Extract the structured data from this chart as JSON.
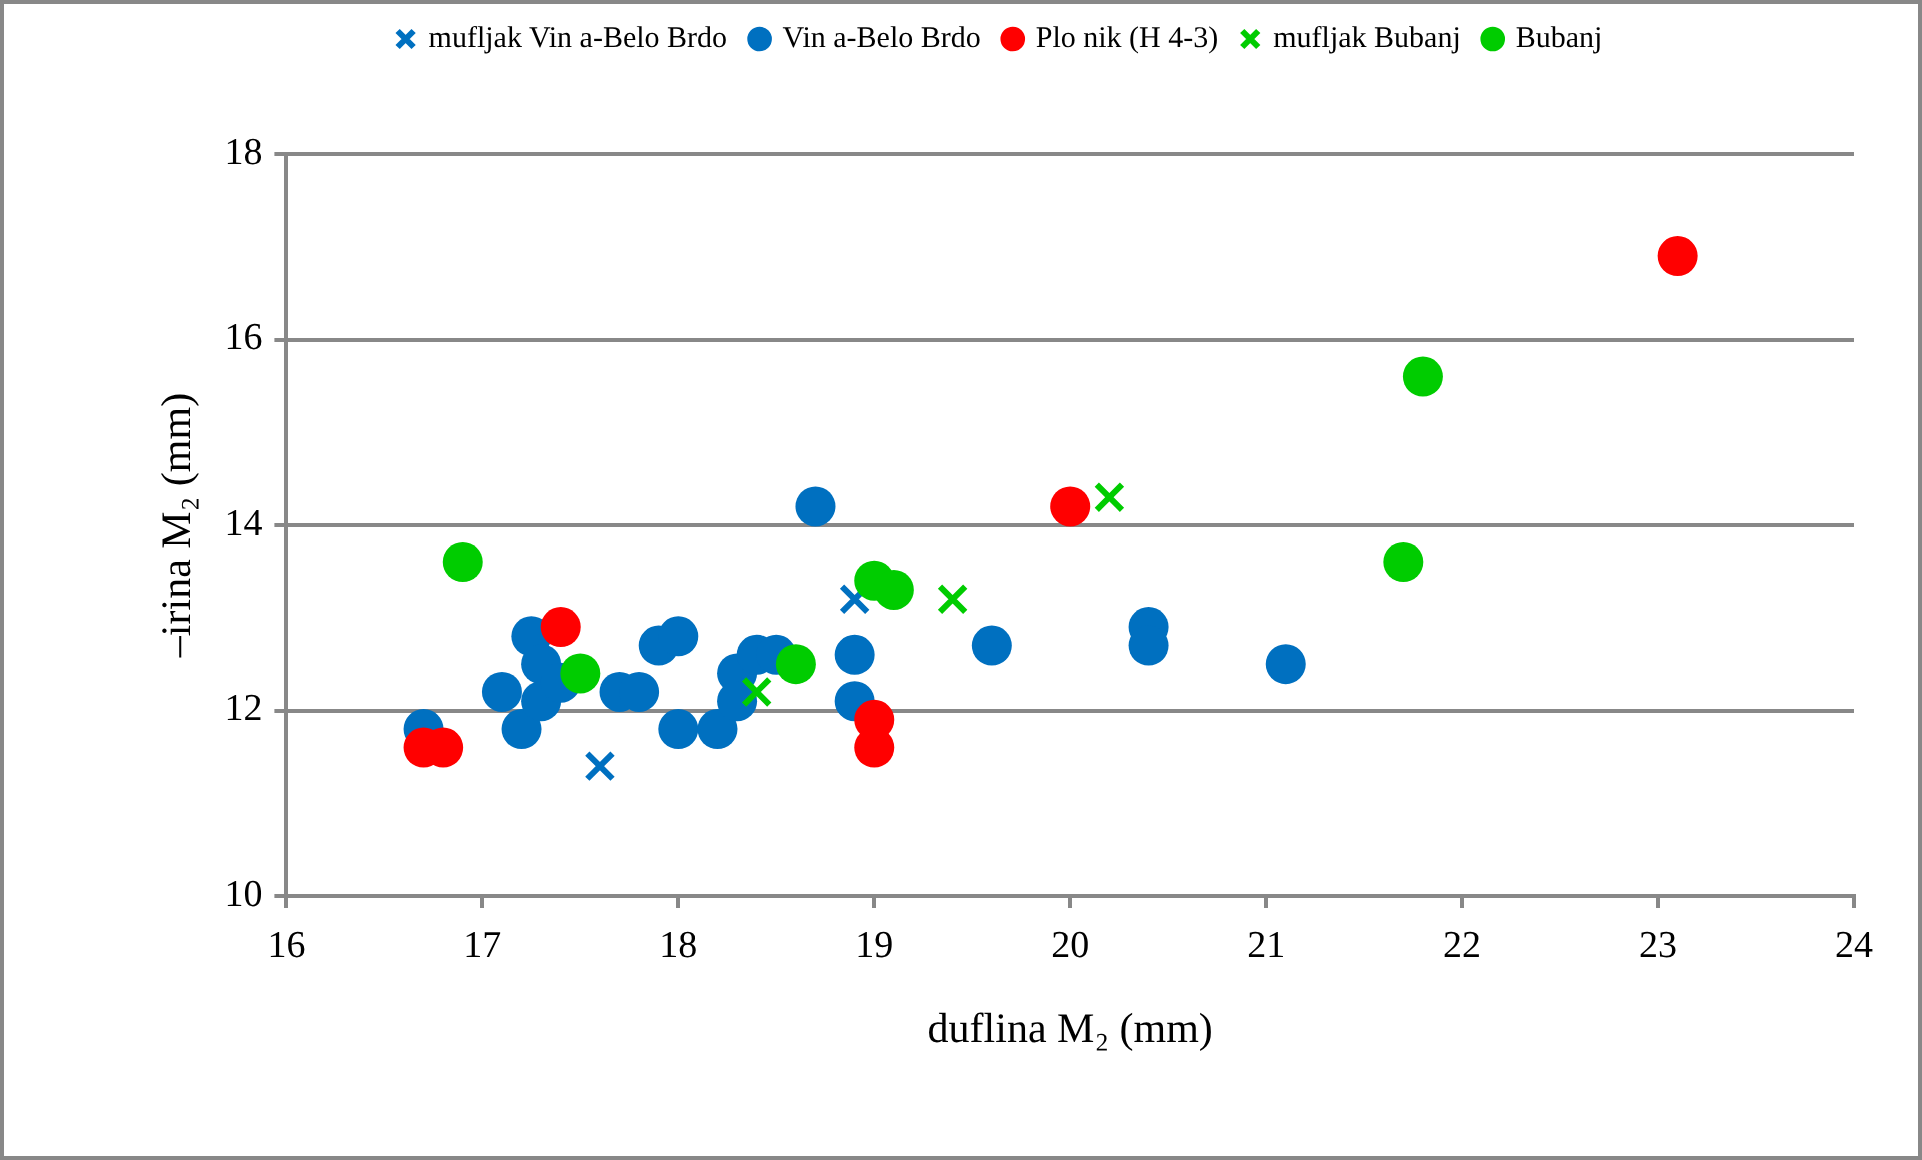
{
  "chart_data": {
    "type": "scatter",
    "xlabel": "duflina M₂ (mm)",
    "ylabel": "–irina M₂ (mm)",
    "xlim": [
      16,
      24
    ],
    "xticks": [
      16,
      17,
      18,
      19,
      20,
      21,
      22,
      23,
      24
    ],
    "ylim": [
      10,
      18
    ],
    "yticks": [
      10,
      12,
      14,
      16,
      18
    ],
    "grid": "y",
    "legend": "top",
    "series": [
      {
        "name": "mufljak Vin a-Belo Brdo",
        "color": "#0070c0",
        "marker": "cross",
        "x": [
          17.6,
          18.9
        ],
        "values": [
          11.4,
          13.2
        ]
      },
      {
        "name": "Vin a-Belo Brdo",
        "color": "#0070c0",
        "marker": "circle",
        "x": [
          16.7,
          17.1,
          17.2,
          17.25,
          17.3,
          17.3,
          17.4,
          17.7,
          17.8,
          17.9,
          18.0,
          18.0,
          18.2,
          18.3,
          18.3,
          18.4,
          18.5,
          18.7,
          18.9,
          18.9,
          19.6,
          20.4,
          20.4,
          21.1
        ],
        "values": [
          11.8,
          12.2,
          11.8,
          12.8,
          12.5,
          12.1,
          12.3,
          12.2,
          12.2,
          12.7,
          12.8,
          11.8,
          11.8,
          12.4,
          12.1,
          12.6,
          12.6,
          14.2,
          12.6,
          12.1,
          12.7,
          12.9,
          12.7,
          12.5
        ]
      },
      {
        "name": "Plo nik (H 4-3)",
        "color": "#ff0000",
        "marker": "circle",
        "x": [
          16.7,
          16.8,
          17.4,
          19.0,
          19.0,
          20.0,
          23.1
        ],
        "values": [
          11.6,
          11.6,
          12.9,
          11.9,
          11.6,
          14.2,
          16.9
        ]
      },
      {
        "name": "mufljak Bubanj",
        "color": "#00cc00",
        "marker": "cross",
        "x": [
          18.4,
          19.4,
          20.2
        ],
        "values": [
          12.2,
          13.2,
          14.3
        ]
      },
      {
        "name": "Bubanj",
        "color": "#00cc00",
        "marker": "circle",
        "x": [
          16.9,
          17.5,
          18.6,
          19.0,
          19.1,
          21.7,
          21.8
        ],
        "values": [
          13.6,
          12.4,
          12.5,
          13.4,
          13.3,
          13.6,
          15.6
        ]
      }
    ]
  }
}
